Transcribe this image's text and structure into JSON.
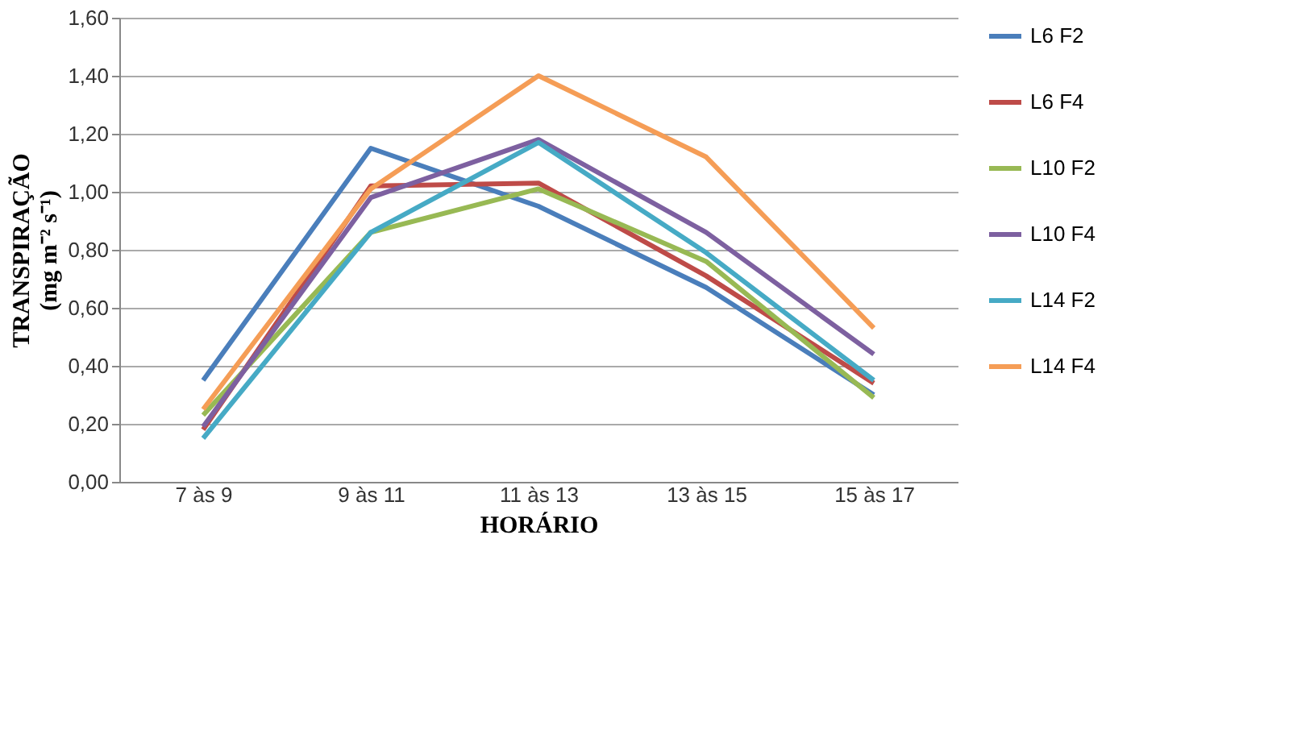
{
  "chart_data": {
    "type": "line",
    "xlabel": "HORÁRIO",
    "ylabel": "TRANSPIRAÇÃO\n(mg m⁻² s⁻¹)",
    "categories": [
      "7 às 9",
      "9 às 11",
      "11 às 13",
      "13 às 15",
      "15 às 17"
    ],
    "series": [
      {
        "name": "L6 F2",
        "color": "#4a7ebb",
        "values": [
          0.35,
          1.15,
          0.95,
          0.67,
          0.3
        ]
      },
      {
        "name": "L6 F4",
        "color": "#be4b48",
        "values": [
          0.18,
          1.02,
          1.03,
          0.71,
          0.34
        ]
      },
      {
        "name": "L10 F2",
        "color": "#98b954",
        "values": [
          0.23,
          0.86,
          1.01,
          0.76,
          0.29
        ]
      },
      {
        "name": "L10 F4",
        "color": "#7d60a0",
        "values": [
          0.19,
          0.98,
          1.18,
          0.86,
          0.44
        ]
      },
      {
        "name": "L14 F2",
        "color": "#46aac5",
        "values": [
          0.15,
          0.86,
          1.17,
          0.79,
          0.35
        ]
      },
      {
        "name": "L14 F4",
        "color": "#f59d56",
        "values": [
          0.25,
          1.01,
          1.4,
          1.12,
          0.53
        ]
      }
    ],
    "ylim": [
      0,
      1.6
    ],
    "yticks": [
      {
        "value": 0,
        "label": "0,00"
      },
      {
        "value": 0.2,
        "label": "0,20"
      },
      {
        "value": 0.4,
        "label": "0,40"
      },
      {
        "value": 0.6,
        "label": "0,60"
      },
      {
        "value": 0.8,
        "label": "0,80"
      },
      {
        "value": 1.0,
        "label": "1,00"
      },
      {
        "value": 1.2,
        "label": "1,20"
      },
      {
        "value": 1.4,
        "label": "1,40"
      },
      {
        "value": 1.6,
        "label": "1,60"
      }
    ],
    "grid": "y",
    "legend": "right",
    "marker": "none",
    "line_style": "solid"
  }
}
